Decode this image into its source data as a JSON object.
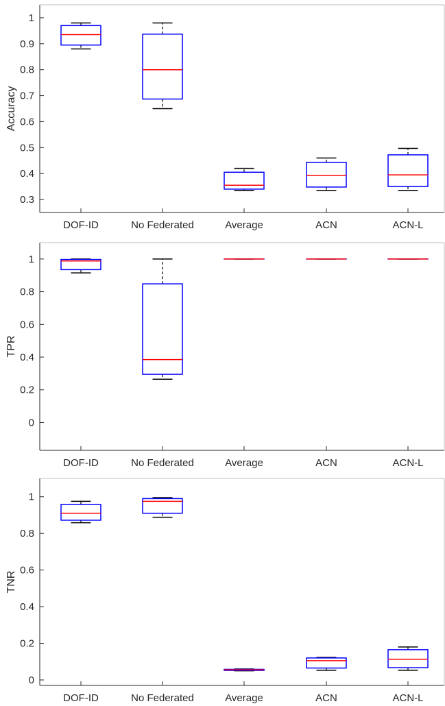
{
  "chart_data": [
    {
      "type": "boxplot",
      "ylabel": "Accuracy",
      "ylim": [
        0.25,
        1.05
      ],
      "yticks": [
        0.3,
        0.4,
        0.5,
        0.6,
        0.7,
        0.8,
        0.9,
        1
      ],
      "ytick_labels": [
        "0.3",
        "0.4",
        "0.5",
        "0.6",
        "0.7",
        "0.8",
        "0.9",
        "1"
      ],
      "categories": [
        "DOF-ID",
        "No Federated",
        "Average",
        "ACN",
        "ACN-L"
      ],
      "boxes": [
        {
          "min": 0.88,
          "q1": 0.895,
          "median": 0.935,
          "q3": 0.97,
          "max": 0.98
        },
        {
          "min": 0.65,
          "q1": 0.687,
          "median": 0.8,
          "q3": 0.937,
          "max": 0.98
        },
        {
          "min": 0.335,
          "q1": 0.34,
          "median": 0.355,
          "q3": 0.405,
          "max": 0.42
        },
        {
          "min": 0.335,
          "q1": 0.348,
          "median": 0.393,
          "q3": 0.443,
          "max": 0.46
        },
        {
          "min": 0.335,
          "q1": 0.35,
          "median": 0.395,
          "q3": 0.472,
          "max": 0.497
        }
      ],
      "grid": false
    },
    {
      "type": "boxplot",
      "ylabel": "TPR",
      "ylim": [
        -0.17,
        1.1
      ],
      "yticks": [
        0,
        0.2,
        0.4,
        0.6,
        0.8,
        1
      ],
      "ytick_labels": [
        "0",
        "0.2",
        "0.4",
        "0.6",
        "0.8",
        "1"
      ],
      "categories": [
        "DOF-ID",
        "No Federated",
        "Average",
        "ACN",
        "ACN-L"
      ],
      "boxes": [
        {
          "min": 0.915,
          "q1": 0.935,
          "median": 0.988,
          "q3": 0.997,
          "max": 1.0
        },
        {
          "min": 0.265,
          "q1": 0.295,
          "median": 0.385,
          "q3": 0.848,
          "max": 1.0
        },
        {
          "min": 1.0,
          "q1": 1.0,
          "median": 1.0,
          "q3": 1.0,
          "max": 1.0
        },
        {
          "min": 1.0,
          "q1": 1.0,
          "median": 1.0,
          "q3": 1.0,
          "max": 1.0
        },
        {
          "min": 1.0,
          "q1": 1.0,
          "median": 1.0,
          "q3": 1.0,
          "max": 1.0
        }
      ],
      "grid": false
    },
    {
      "type": "boxplot",
      "ylabel": "TNR",
      "ylim": [
        -0.03,
        1.1
      ],
      "yticks": [
        0,
        0.2,
        0.4,
        0.6,
        0.8,
        1
      ],
      "ytick_labels": [
        "0",
        "0.2",
        "0.4",
        "0.6",
        "0.8",
        "1"
      ],
      "categories": [
        "DOF-ID",
        "No Federated",
        "Average",
        "ACN",
        "ACN-L"
      ],
      "boxes": [
        {
          "min": 0.858,
          "q1": 0.872,
          "median": 0.91,
          "q3": 0.958,
          "max": 0.975
        },
        {
          "min": 0.888,
          "q1": 0.91,
          "median": 0.975,
          "q3": 0.99,
          "max": 0.995
        },
        {
          "min": 0.05,
          "q1": 0.052,
          "median": 0.055,
          "q3": 0.058,
          "max": 0.06
        },
        {
          "min": 0.053,
          "q1": 0.065,
          "median": 0.105,
          "q3": 0.12,
          "max": 0.123
        },
        {
          "min": 0.053,
          "q1": 0.067,
          "median": 0.113,
          "q3": 0.165,
          "max": 0.18
        }
      ],
      "grid": false
    }
  ],
  "colors": {
    "box": "#0000ff",
    "median": "#ff0000",
    "whisker": "#000000",
    "axis": "#262626"
  }
}
